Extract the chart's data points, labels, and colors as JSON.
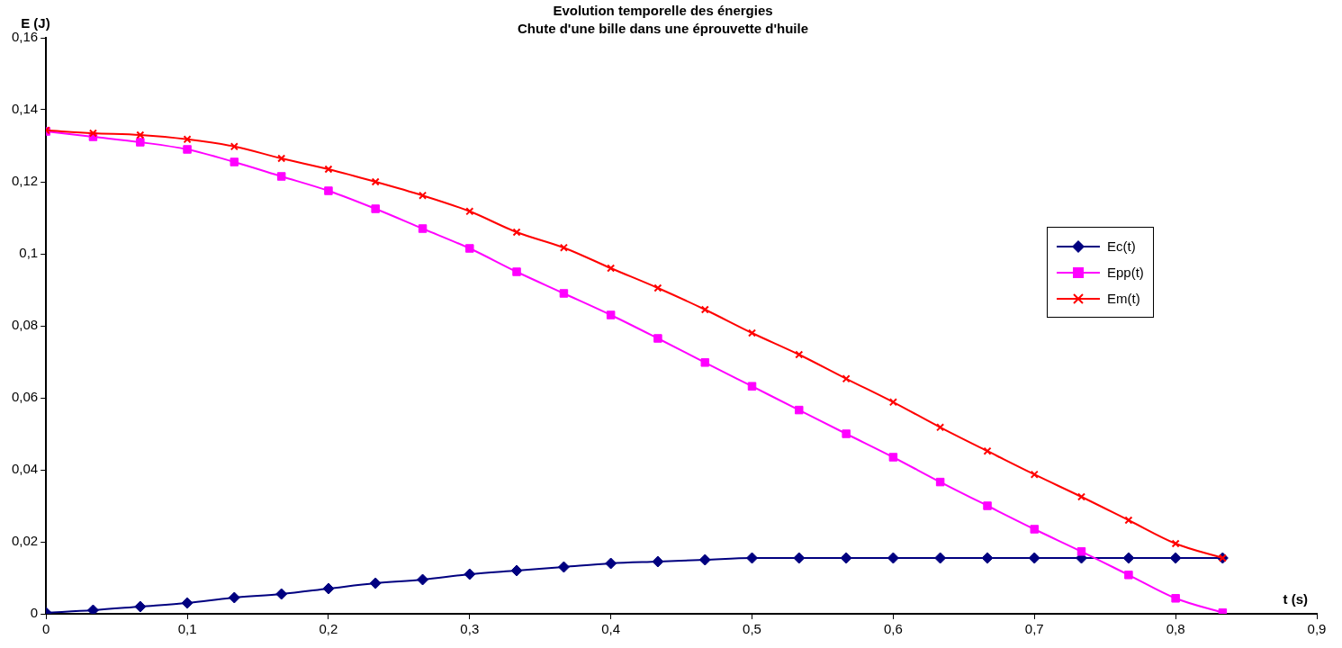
{
  "chart_data": {
    "type": "line",
    "title": "Evolution temporelle des énergies",
    "subtitle": "Chute d'une bille dans une éprouvette d'huile",
    "xlabel": "t (s)",
    "ylabel": "E (J)",
    "x": [
      0,
      0.0333,
      0.0667,
      0.1,
      0.1333,
      0.1667,
      0.2,
      0.2333,
      0.2667,
      0.3,
      0.3333,
      0.3667,
      0.4,
      0.4333,
      0.4667,
      0.5,
      0.5333,
      0.5667,
      0.6,
      0.6333,
      0.6667,
      0.7,
      0.7333,
      0.7667,
      0.8,
      0.8333
    ],
    "series": [
      {
        "name": "Ec(t)",
        "color": "#000080",
        "marker": "diamond",
        "values": [
          0.0003,
          0.001,
          0.002,
          0.003,
          0.0045,
          0.0055,
          0.007,
          0.0085,
          0.0095,
          0.011,
          0.012,
          0.013,
          0.014,
          0.0145,
          0.015,
          0.0155,
          0.0155,
          0.0155,
          0.0155,
          0.0155,
          0.0155,
          0.0155,
          0.0155,
          0.0155,
          0.0155,
          0.0155
        ]
      },
      {
        "name": "Epp(t)",
        "color": "#ff00ff",
        "marker": "square",
        "values": [
          0.134,
          0.1325,
          0.131,
          0.129,
          0.1255,
          0.1215,
          0.1175,
          0.1125,
          0.107,
          0.1015,
          0.095,
          0.089,
          0.083,
          0.0765,
          0.0698,
          0.0632,
          0.0566,
          0.05,
          0.0435,
          0.0366,
          0.03,
          0.0235,
          0.0173,
          0.0108,
          0.0043,
          0.0003
        ]
      },
      {
        "name": "Em(t)",
        "color": "#ff0000",
        "marker": "cross",
        "values": [
          0.1343,
          0.1335,
          0.133,
          0.1318,
          0.1298,
          0.1265,
          0.1235,
          0.12,
          0.1162,
          0.1118,
          0.106,
          0.1017,
          0.096,
          0.0905,
          0.0845,
          0.078,
          0.072,
          0.0653,
          0.0588,
          0.0518,
          0.0452,
          0.0387,
          0.0325,
          0.026,
          0.0195,
          0.0155
        ]
      }
    ],
    "xlim": [
      0,
      0.9
    ],
    "xticks": [
      0,
      {
        "value": 0.1,
        "label": "0,1"
      },
      {
        "value": 0.2,
        "label": "0,2"
      },
      {
        "value": 0.3,
        "label": "0,3"
      },
      {
        "value": 0.4,
        "label": "0,4"
      },
      {
        "value": 0.5,
        "label": "0,5"
      },
      {
        "value": 0.6,
        "label": "0,6"
      },
      {
        "value": 0.7,
        "label": "0,7"
      },
      {
        "value": 0.8,
        "label": "0,8"
      },
      {
        "value": 0.9,
        "label": "0,9"
      }
    ],
    "ylim": [
      0,
      0.16
    ],
    "yticks": [
      0,
      {
        "value": 0.02,
        "label": "0,02"
      },
      {
        "value": 0.04,
        "label": "0,04"
      },
      {
        "value": 0.06,
        "label": "0,06"
      },
      {
        "value": 0.08,
        "label": "0,08"
      },
      {
        "value": 0.1,
        "label": "0,1"
      },
      {
        "value": 0.12,
        "label": "0,12"
      },
      {
        "value": 0.14,
        "label": "0,14"
      },
      {
        "value": 0.16,
        "label": "0,16"
      }
    ],
    "grid": false,
    "legend": "right",
    "line_style": "solid"
  }
}
